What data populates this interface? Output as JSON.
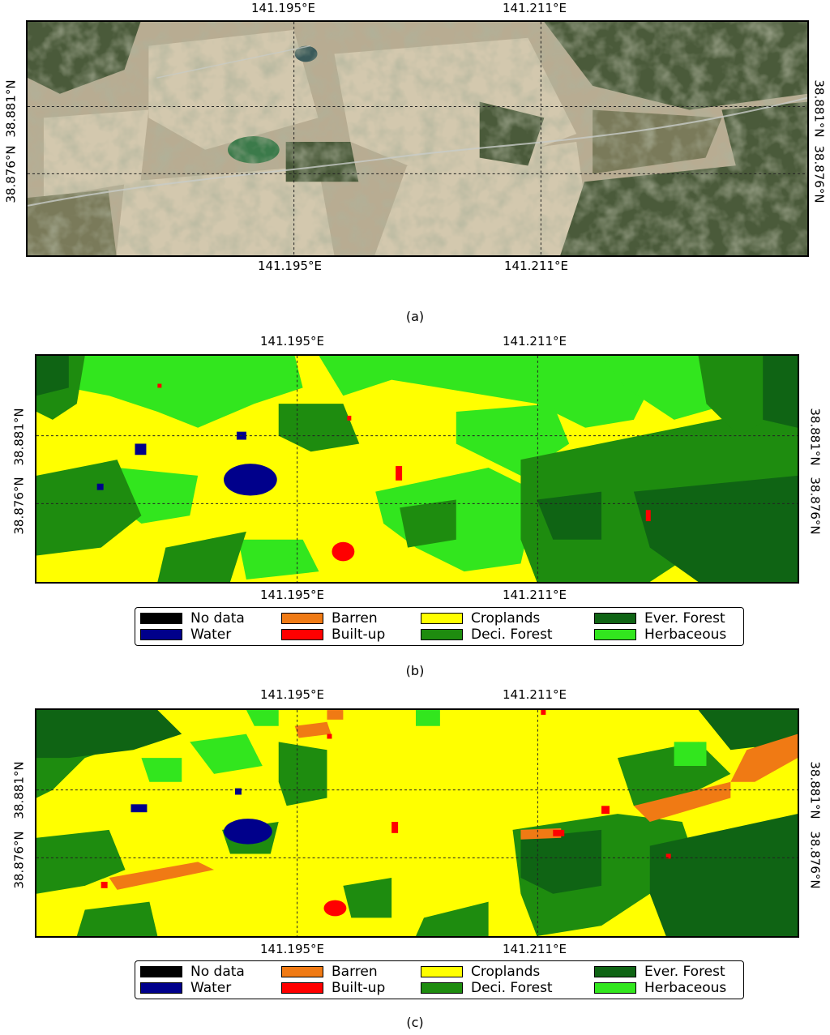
{
  "ticks": {
    "lon_left": "141.195°E",
    "lon_right": "141.211°E",
    "lat_top": "38.881°N",
    "lat_bottom": "38.876°N"
  },
  "captions": {
    "a": "(a)",
    "b": "(b)",
    "c": "(c)"
  },
  "legend": [
    {
      "label": "No data",
      "color": "#000000"
    },
    {
      "label": "Water",
      "color": "#00008b"
    },
    {
      "label": "Barren",
      "color": "#f07a14"
    },
    {
      "label": "Built-up",
      "color": "#ff0000"
    },
    {
      "label": "Croplands",
      "color": "#ffff00"
    },
    {
      "label": "Deci. Forest",
      "color": "#1e8c0f"
    },
    {
      "label": "Ever. Forest",
      "color": "#0f6414"
    },
    {
      "label": "Herbaceous",
      "color": "#32e61e"
    }
  ]
}
